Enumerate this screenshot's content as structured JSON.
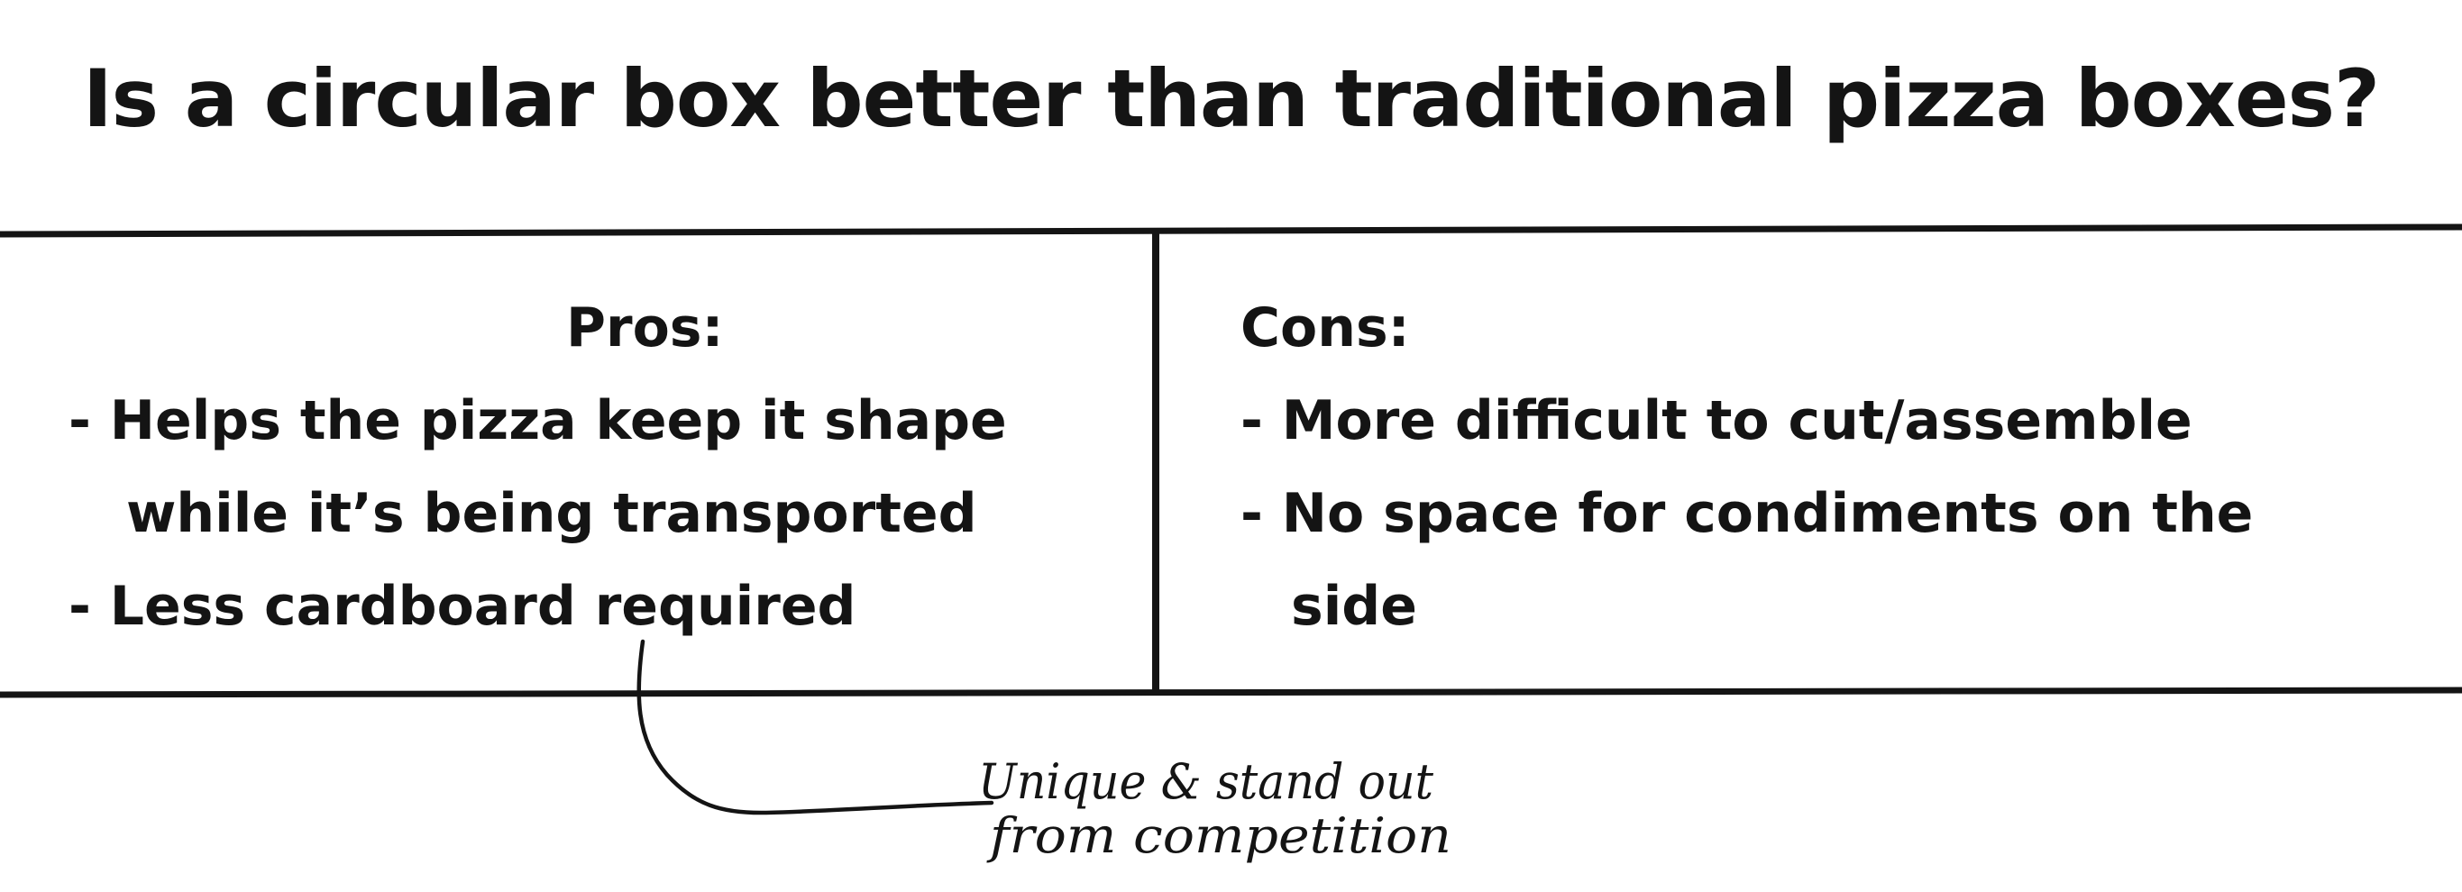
{
  "title": "Is a circular box better than traditional pizza boxes?",
  "pros": {
    "heading": "Pros:",
    "lines": [
      "- Helps the pizza keep it shape",
      "while it’s being transported",
      "- Less cardboard required"
    ]
  },
  "cons": {
    "heading": "Cons:",
    "lines": [
      "- More difficult to cut/assemble",
      "- No space for condiments on the",
      "side"
    ]
  },
  "annotation": {
    "line1": "Unique & stand out",
    "line2": "from competition"
  }
}
